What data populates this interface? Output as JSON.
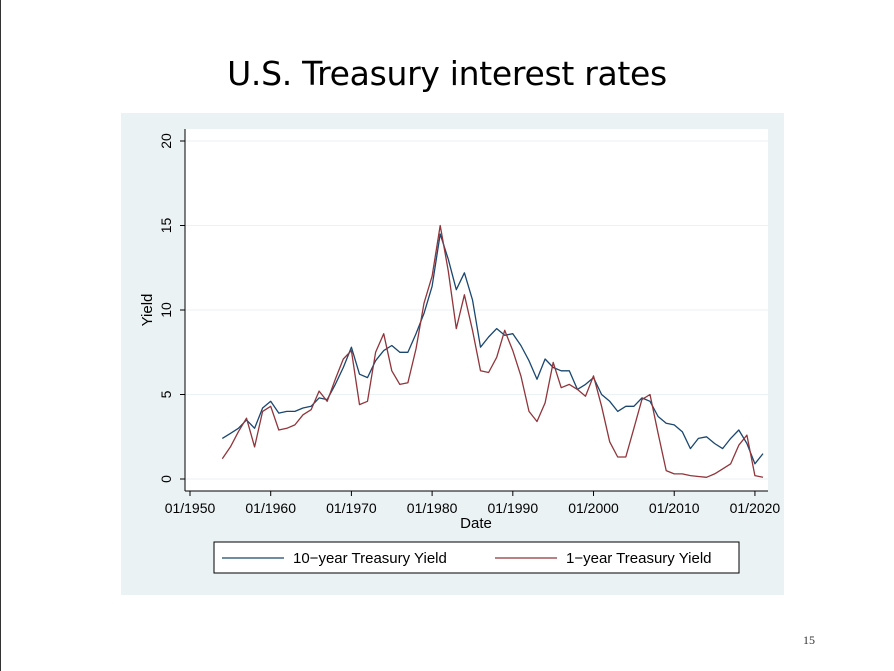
{
  "slide": {
    "title": "U.S. Treasury interest rates",
    "page_number": "15"
  },
  "chart_data": {
    "type": "line",
    "title": "",
    "xlabel": "Date",
    "ylabel": "Yield",
    "xlim": [
      "01/1950",
      "01/2021"
    ],
    "ylim": [
      0,
      20
    ],
    "x_ticks": [
      "01/1950",
      "01/1960",
      "01/1970",
      "01/1980",
      "01/1990",
      "01/2000",
      "01/2010",
      "01/2020"
    ],
    "y_ticks": [
      0,
      5,
      10,
      15,
      20
    ],
    "grid": true,
    "legend_position": "bottom",
    "colors": {
      "plot_bg": "#ffffff",
      "outer_bg": "#eaf2f3",
      "grid": "#eaf2f3"
    },
    "series": [
      {
        "name": "10−year Treasury Yield",
        "color": "#1a476f",
        "x": [
          "01/1954",
          "01/1955",
          "01/1956",
          "01/1957",
          "01/1958",
          "01/1959",
          "01/1960",
          "01/1961",
          "01/1962",
          "01/1963",
          "01/1964",
          "01/1965",
          "01/1966",
          "01/1967",
          "01/1968",
          "01/1969",
          "01/1970",
          "01/1971",
          "01/1972",
          "01/1973",
          "01/1974",
          "01/1975",
          "01/1976",
          "01/1977",
          "01/1978",
          "01/1979",
          "01/1980",
          "01/1981",
          "01/1982",
          "01/1983",
          "01/1984",
          "01/1985",
          "01/1986",
          "01/1987",
          "01/1988",
          "01/1989",
          "01/1990",
          "01/1991",
          "01/1992",
          "01/1993",
          "01/1994",
          "01/1995",
          "01/1996",
          "01/1997",
          "01/1998",
          "01/1999",
          "01/2000",
          "01/2001",
          "01/2002",
          "01/2003",
          "01/2004",
          "01/2005",
          "01/2006",
          "01/2007",
          "01/2008",
          "01/2009",
          "01/2010",
          "01/2011",
          "01/2012",
          "01/2013",
          "01/2014",
          "01/2015",
          "01/2016",
          "01/2017",
          "01/2018",
          "01/2019",
          "01/2020",
          "01/2021"
        ],
        "y": [
          2.4,
          2.7,
          3.0,
          3.5,
          3.0,
          4.2,
          4.6,
          3.9,
          4.0,
          4.0,
          4.2,
          4.3,
          4.8,
          4.7,
          5.6,
          6.6,
          7.8,
          6.2,
          6.0,
          7.0,
          7.6,
          7.9,
          7.5,
          7.5,
          8.6,
          9.8,
          11.4,
          14.5,
          13.0,
          11.2,
          12.2,
          10.6,
          7.8,
          8.4,
          8.9,
          8.5,
          8.6,
          7.9,
          7.0,
          5.9,
          7.1,
          6.6,
          6.4,
          6.4,
          5.3,
          5.6,
          6.0,
          5.0,
          4.6,
          4.0,
          4.3,
          4.3,
          4.8,
          4.6,
          3.7,
          3.3,
          3.2,
          2.8,
          1.8,
          2.4,
          2.5,
          2.1,
          1.8,
          2.4,
          2.9,
          2.1,
          0.9,
          1.5
        ]
      },
      {
        "name": "1−year Treasury Yield",
        "color": "#90353b",
        "x": [
          "01/1954",
          "01/1955",
          "01/1956",
          "01/1957",
          "01/1958",
          "01/1959",
          "01/1960",
          "01/1961",
          "01/1962",
          "01/1963",
          "01/1964",
          "01/1965",
          "01/1966",
          "01/1967",
          "01/1968",
          "01/1969",
          "01/1970",
          "01/1971",
          "01/1972",
          "01/1973",
          "01/1974",
          "01/1975",
          "01/1976",
          "01/1977",
          "01/1978",
          "01/1979",
          "01/1980",
          "01/1981",
          "01/1982",
          "01/1983",
          "01/1984",
          "01/1985",
          "01/1986",
          "01/1987",
          "01/1988",
          "01/1989",
          "01/1990",
          "01/1991",
          "01/1992",
          "01/1993",
          "01/1994",
          "01/1995",
          "01/1996",
          "01/1997",
          "01/1998",
          "01/1999",
          "01/2000",
          "01/2001",
          "01/2002",
          "01/2003",
          "01/2004",
          "01/2005",
          "01/2006",
          "01/2007",
          "01/2008",
          "01/2009",
          "01/2010",
          "01/2011",
          "01/2012",
          "01/2013",
          "01/2014",
          "01/2015",
          "01/2016",
          "01/2017",
          "01/2018",
          "01/2019",
          "01/2020",
          "01/2021"
        ],
        "y": [
          1.2,
          1.9,
          2.8,
          3.6,
          1.9,
          4.0,
          4.3,
          2.9,
          3.0,
          3.2,
          3.8,
          4.1,
          5.2,
          4.6,
          5.9,
          7.1,
          7.6,
          4.4,
          4.6,
          7.5,
          8.6,
          6.4,
          5.6,
          5.7,
          7.7,
          10.4,
          12.0,
          15.0,
          12.3,
          8.9,
          10.9,
          8.8,
          6.4,
          6.3,
          7.2,
          8.8,
          7.6,
          6.1,
          4.0,
          3.4,
          4.5,
          6.9,
          5.4,
          5.6,
          5.3,
          4.9,
          6.1,
          4.3,
          2.2,
          1.3,
          1.3,
          3.0,
          4.7,
          5.0,
          2.7,
          0.5,
          0.3,
          0.3,
          0.2,
          0.15,
          0.1,
          0.3,
          0.6,
          0.9,
          2.0,
          2.6,
          0.2,
          0.1
        ]
      }
    ]
  }
}
